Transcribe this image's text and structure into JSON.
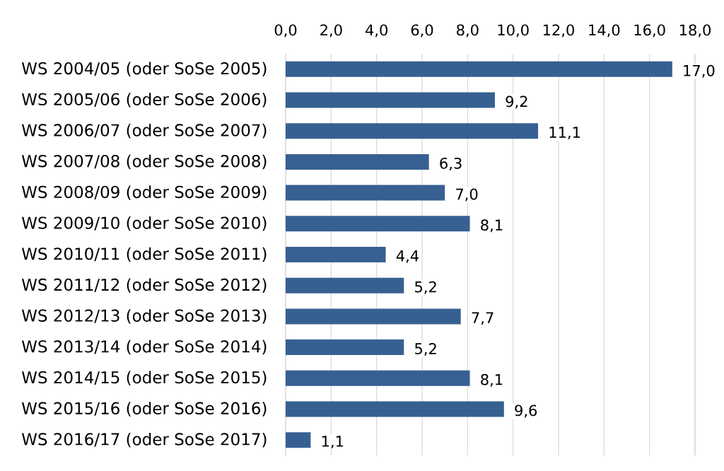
{
  "chart_data": {
    "type": "bar",
    "orientation": "horizontal",
    "categories": [
      "WS 2004/05 (oder SoSe 2005)",
      "WS 2005/06 (oder SoSe 2006)",
      "WS 2006/07 (oder SoSe 2007)",
      "WS 2007/08 (oder SoSe 2008)",
      "WS 2008/09 (oder SoSe 2009)",
      "WS 2009/10 (oder SoSe 2010)",
      "WS 2010/11 (oder SoSe 2011)",
      "WS 2011/12 (oder SoSe 2012)",
      "WS 2012/13 (oder SoSe 2013)",
      "WS 2013/14 (oder SoSe 2014)",
      "WS 2014/15 (oder SoSe 2015)",
      "WS 2015/16 (oder SoSe 2016)",
      "WS 2016/17 (oder SoSe 2017)"
    ],
    "values": [
      17.0,
      9.2,
      11.1,
      6.3,
      7.0,
      8.1,
      4.4,
      5.2,
      7.7,
      5.2,
      8.1,
      9.6,
      1.1
    ],
    "value_labels": [
      "17,0",
      "9,2",
      "11,1",
      "6,3",
      "7,0",
      "8,1",
      "4,4",
      "5,2",
      "7,7",
      "5,2",
      "8,1",
      "9,6",
      "1,1"
    ],
    "color": "#376092",
    "xlim": [
      0,
      18
    ],
    "xticks": [
      {
        "value": 0,
        "label": "0,0"
      },
      {
        "value": 2,
        "label": "2,0"
      },
      {
        "value": 4,
        "label": "4,0"
      },
      {
        "value": 6,
        "label": "6,0"
      },
      {
        "value": 8,
        "label": "8,0"
      },
      {
        "value": 10,
        "label": "10,0"
      },
      {
        "value": 12,
        "label": "12,0"
      },
      {
        "value": 14,
        "label": "14,0"
      },
      {
        "value": 16,
        "label": "16,0"
      },
      {
        "value": 18,
        "label": "18,0"
      }
    ],
    "grid": "x"
  }
}
